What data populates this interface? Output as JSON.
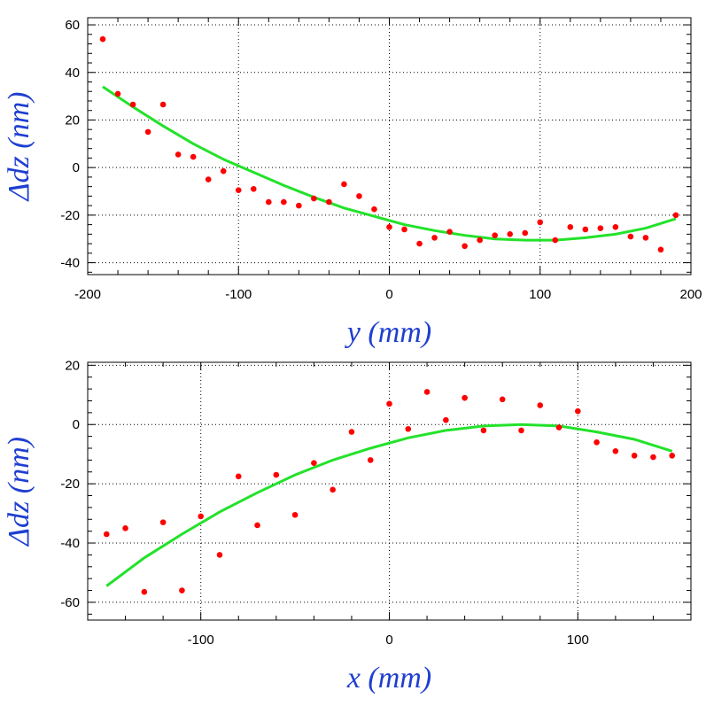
{
  "chart_data": [
    {
      "type": "scatter",
      "xlabel": "y (mm)",
      "ylabel": "Δdz (nm)",
      "xlim": [
        -200,
        200
      ],
      "ylim": [
        -45,
        63
      ],
      "xticks": [
        -200,
        -100,
        0,
        100,
        200
      ],
      "yticks": [
        -40,
        -20,
        0,
        20,
        40,
        60
      ],
      "x_tick_labels": [
        "-200",
        "-100",
        "0",
        "100",
        "200"
      ],
      "y_tick_labels": [
        "-40",
        "-20",
        "0",
        "20",
        "40",
        "60"
      ],
      "grid": true,
      "colors": {
        "points": "#ff0000",
        "fit": "#22e22a",
        "axis_title": "#1f3fd0"
      },
      "series": [
        {
          "kind": "points",
          "x": [
            -190,
            -180,
            -170,
            -160,
            -150,
            -140,
            -130,
            -120,
            -110,
            -100,
            -90,
            -80,
            -70,
            -60,
            -50,
            -40,
            -30,
            -20,
            -10,
            0,
            10,
            20,
            30,
            40,
            50,
            60,
            70,
            80,
            90,
            100,
            110,
            120,
            130,
            140,
            150,
            160,
            170,
            180,
            190
          ],
          "y": [
            54,
            31,
            26.5,
            15,
            26.5,
            5.5,
            4.5,
            -5,
            -1.5,
            -9.5,
            -9,
            -14.5,
            -14.5,
            -16,
            -13,
            -14.5,
            -7,
            -12,
            -17.5,
            -25,
            -26,
            -32,
            -29.5,
            -27,
            -33,
            -30.5,
            -28.5,
            -28,
            -27.5,
            -23,
            -30.5,
            -25,
            -26,
            -25.5,
            -25,
            -29,
            -29.5,
            -34.5,
            -20
          ]
        },
        {
          "kind": "fit-curve",
          "x": [
            -190,
            -170,
            -150,
            -130,
            -110,
            -90,
            -70,
            -50,
            -30,
            -10,
            10,
            30,
            50,
            70,
            90,
            110,
            130,
            150,
            170,
            190
          ],
          "y": [
            34,
            25.5,
            17.5,
            10,
            3.5,
            -2,
            -7.5,
            -12.5,
            -17,
            -20.5,
            -24,
            -26.5,
            -28.5,
            -30,
            -30.5,
            -30.5,
            -29.5,
            -28,
            -25.5,
            -21.5
          ]
        }
      ]
    },
    {
      "type": "scatter",
      "xlabel": "x (mm)",
      "ylabel": "Δdz (nm)",
      "xlim": [
        -160,
        160
      ],
      "ylim": [
        -66,
        21
      ],
      "xticks": [
        -100,
        0,
        100
      ],
      "yticks": [
        -60,
        -40,
        -20,
        0,
        20
      ],
      "x_tick_labels": [
        "-100",
        "0",
        "100"
      ],
      "y_tick_labels": [
        "-60",
        "-40",
        "-20",
        "0",
        "20"
      ],
      "grid": true,
      "colors": {
        "points": "#ff0000",
        "fit": "#22e22a",
        "axis_title": "#1f3fd0"
      },
      "series": [
        {
          "kind": "points",
          "x": [
            -150,
            -140,
            -130,
            -120,
            -110,
            -100,
            -90,
            -80,
            -70,
            -60,
            -50,
            -40,
            -30,
            -20,
            -10,
            0,
            10,
            20,
            30,
            40,
            50,
            60,
            70,
            80,
            90,
            100,
            110,
            120,
            130,
            140,
            150
          ],
          "y": [
            -37,
            -35,
            -56.5,
            -33,
            -56,
            -31,
            -44,
            -17.5,
            -34,
            -17,
            -30.5,
            -13,
            -22,
            -2.5,
            -12,
            7,
            -1.5,
            11,
            1.5,
            9,
            -2,
            8.5,
            -2,
            6.5,
            -1,
            4.5,
            -6,
            -9,
            -10.5,
            -11,
            -10.5
          ]
        },
        {
          "kind": "fit-curve",
          "x": [
            -150,
            -130,
            -110,
            -90,
            -70,
            -50,
            -30,
            -10,
            10,
            30,
            50,
            70,
            90,
            110,
            130,
            150
          ],
          "y": [
            -54.5,
            -45,
            -37,
            -29.5,
            -23,
            -17,
            -12,
            -8,
            -4.5,
            -2,
            -0.5,
            0,
            -0.5,
            -2.5,
            -5,
            -9
          ]
        }
      ]
    }
  ]
}
